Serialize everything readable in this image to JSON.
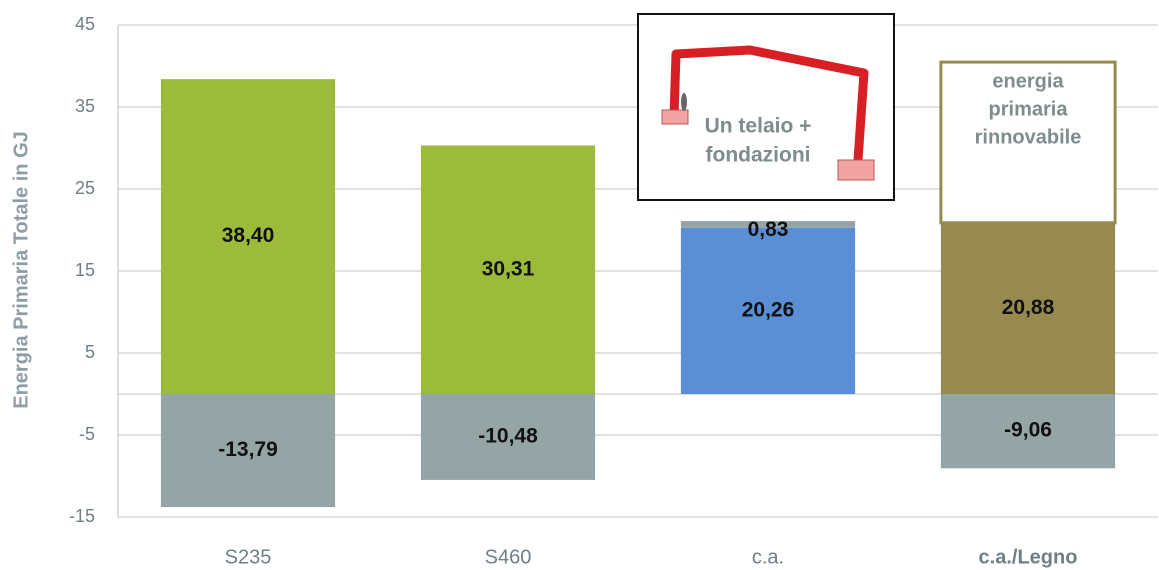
{
  "chart_data": {
    "type": "stacked_bar",
    "y_label": "Energia Primaria Totale in GJ",
    "categories": [
      "S235",
      "S460",
      "c.a.",
      "c.a./Legno"
    ],
    "ylim": [
      -15,
      45
    ],
    "yticks": [
      -15,
      -5,
      5,
      15,
      25,
      35,
      45
    ],
    "grid": true,
    "series": [
      {
        "colors": [
          "#9dbb3b",
          "#9dbb3b",
          "#5b8fd5",
          "#968a4f"
        ],
        "values": [
          38.4,
          30.31,
          20.26,
          20.88
        ],
        "value_labels": [
          "38,40",
          "30,31",
          "20,26",
          "20,88"
        ]
      },
      {
        "color": "#95a5a6",
        "values": [
          -13.79,
          -10.48,
          null,
          -9.06
        ],
        "value_labels": [
          "-13,79",
          "-10,48",
          null,
          "-9,06"
        ]
      },
      {
        "color": "#95a5a6",
        "values": [
          null,
          null,
          0.83,
          null
        ],
        "value_labels": [
          null,
          null,
          "0,83",
          null
        ]
      },
      {
        "color": "#ffffff",
        "edge_color": "#968a4f",
        "values": [
          null,
          null,
          null,
          19.6
        ],
        "annotation": [
          "energia",
          "primaria",
          "rinnovabile"
        ]
      }
    ],
    "inset_annotation": [
      "Un telaio +",
      "fondazioni"
    ]
  }
}
